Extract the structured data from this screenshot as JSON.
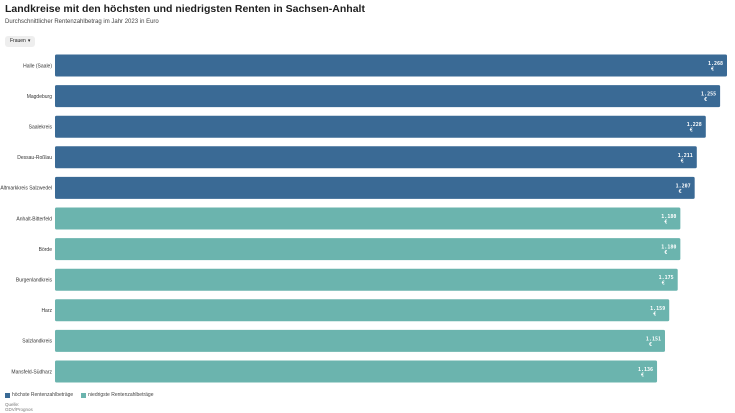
{
  "header": {
    "title": "Landkreise mit den höchsten und niedrigsten Renten in Sachsen-Anhalt",
    "subtitle": "Durchschnittlicher Rentenzahlbetrag im Jahr 2023 in Euro",
    "filter_label": "Frauen"
  },
  "legend": {
    "high_label": "höchste Rentenzahlbeträge",
    "low_label": "niedrigste Rentenzahlbeträge"
  },
  "source": {
    "label": "Quelle:",
    "name": "GDV/Prognos"
  },
  "colors": {
    "high": "#3a6a95",
    "low": "#6bb4ae",
    "label": "#ffffff"
  },
  "chart_data": {
    "type": "bar",
    "orientation": "horizontal",
    "categories": [
      "Halle (Saale)",
      "Magdeburg",
      "Saalekreis",
      "Dessau-Roßlau",
      "Altmarkkreis Salzwedel",
      "Anhalt-Bitterfeld",
      "Börde",
      "Burgenlandkreis",
      "Harz",
      "Salzlandkreis",
      "Mansfeld-Südharz"
    ],
    "values": [
      1268,
      1255,
      1228,
      1211,
      1207,
      1180,
      1180,
      1175,
      1159,
      1151,
      1136
    ],
    "value_labels": [
      "1.268 €",
      "1.255 €",
      "1.228 €",
      "1.211 €",
      "1.207 €",
      "1.180 €",
      "1.180 €",
      "1.175 €",
      "1.159 €",
      "1.151 €",
      "1.136 €"
    ],
    "groups": [
      "high",
      "high",
      "high",
      "high",
      "high",
      "low",
      "low",
      "low",
      "low",
      "low",
      "low"
    ],
    "xlim": [
      0,
      1268
    ],
    "grid": false,
    "legend_position": "bottom-left"
  }
}
